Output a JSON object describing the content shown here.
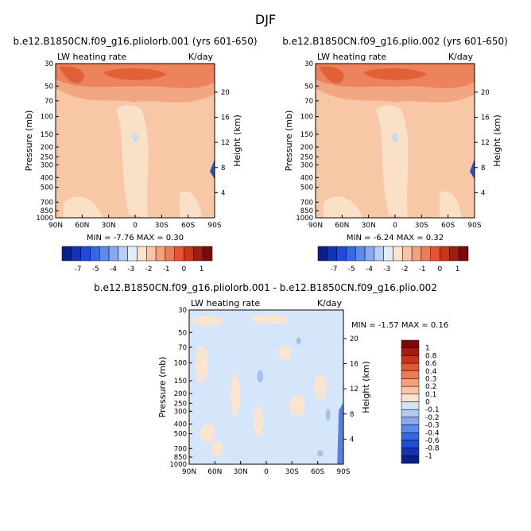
{
  "page_title": "DJF",
  "chart_data": [
    {
      "type": "heatmap",
      "title": "b.e12.B1850CN.f09_g16.pliolorb.001 (yrs 601-650)",
      "variable_label": "LW heating rate",
      "units_label": "K/day",
      "ylabel": "Pressure (mb)",
      "ylabel_right": "Height (km)",
      "x_ticks": [
        "90N",
        "60N",
        "30N",
        "0",
        "30S",
        "60S",
        "90S"
      ],
      "y_ticks": [
        "30",
        "50",
        "70",
        "100",
        "150",
        "200",
        "250",
        "300",
        "400",
        "500",
        "700",
        "850",
        "1000"
      ],
      "height_ticks": [
        "20",
        "16",
        "12",
        "8",
        "4"
      ],
      "stats": "MIN =   -7.76   MAX =    0.30",
      "min": -7.76,
      "max": 0.3,
      "colorbar_labels": [
        "-7",
        "-5",
        "-4",
        "-3",
        "-2",
        "-1",
        "0",
        "1"
      ],
      "colorbar_colors": [
        "#0a1f8a",
        "#1432b4",
        "#1e4cd8",
        "#3468e8",
        "#5a8aec",
        "#86aaf0",
        "#b8cef6",
        "#e2ecfb",
        "#fce3cd",
        "#f9c6a5",
        "#f5a27c",
        "#ef7c55",
        "#e2572f",
        "#c8361a",
        "#a01c10",
        "#7a0a08"
      ],
      "fill_levels": [
        "#fbe0c8",
        "#f8c7a6",
        "#f3a682",
        "#ed835c",
        "#e26038"
      ]
    },
    {
      "type": "heatmap",
      "title": "b.e12.B1850CN.f09_g16.plio.002 (yrs 601-650)",
      "variable_label": "LW heating rate",
      "units_label": "K/day",
      "ylabel": "Pressure (mb)",
      "ylabel_right": "Height (km)",
      "x_ticks": [
        "90N",
        "60N",
        "30N",
        "0",
        "30S",
        "60S",
        "90S"
      ],
      "y_ticks": [
        "30",
        "50",
        "70",
        "100",
        "150",
        "200",
        "250",
        "300",
        "400",
        "500",
        "700",
        "850",
        "1000"
      ],
      "height_ticks": [
        "20",
        "16",
        "12",
        "8",
        "4"
      ],
      "stats": "MIN =   -6.24   MAX =    0.32",
      "min": -6.24,
      "max": 0.32,
      "colorbar_labels": [
        "-7",
        "-5",
        "-4",
        "-3",
        "-2",
        "-1",
        "0",
        "1"
      ],
      "colorbar_colors": [
        "#0a1f8a",
        "#1432b4",
        "#1e4cd8",
        "#3468e8",
        "#5a8aec",
        "#86aaf0",
        "#b8cef6",
        "#e2ecfb",
        "#fce3cd",
        "#f9c6a5",
        "#f5a27c",
        "#ef7c55",
        "#e2572f",
        "#c8361a",
        "#a01c10",
        "#7a0a08"
      ],
      "fill_levels": [
        "#fbe0c8",
        "#f8c7a6",
        "#f3a682",
        "#ed835c",
        "#e26038"
      ]
    },
    {
      "type": "heatmap",
      "title": "b.e12.B1850CN.f09_g16.pliolorb.001 - b.e12.B1850CN.f09_g16.plio.002",
      "variable_label": "LW heating rate",
      "units_label": "K/day",
      "ylabel": "Pressure (mb)",
      "ylabel_right": "Height (km)",
      "x_ticks": [
        "90N",
        "60N",
        "30N",
        "0",
        "30S",
        "60S",
        "90S"
      ],
      "y_ticks": [
        "30",
        "50",
        "70",
        "100",
        "150",
        "200",
        "250",
        "300",
        "400",
        "500",
        "700",
        "850",
        "1000"
      ],
      "height_ticks": [
        "20",
        "16",
        "12",
        "8",
        "4"
      ],
      "stats": "MIN =   -1.57   MAX =    0.16",
      "min": -1.57,
      "max": 0.16,
      "colorbar_labels": [
        "1",
        "0.8",
        "0.6",
        "0.4",
        "0.3",
        "0.2",
        "0.1",
        "0",
        "-0.1",
        "-0.2",
        "-0.3",
        "-0.4",
        "-0.6",
        "-0.8",
        "-1"
      ],
      "colorbar_colors": [
        "#7a0a08",
        "#a01c10",
        "#c8361a",
        "#e2572f",
        "#ef7c55",
        "#f5a27c",
        "#f9c6a5",
        "#fce3cd",
        "#d6e4f8",
        "#b0c8f2",
        "#86aaf0",
        "#5a8aec",
        "#3468e8",
        "#1e4cd8",
        "#1432b4",
        "#0a1f8a"
      ],
      "fill_levels": [
        "#d6e6fa",
        "#fbe4d0",
        "#a9c0ef"
      ]
    }
  ]
}
